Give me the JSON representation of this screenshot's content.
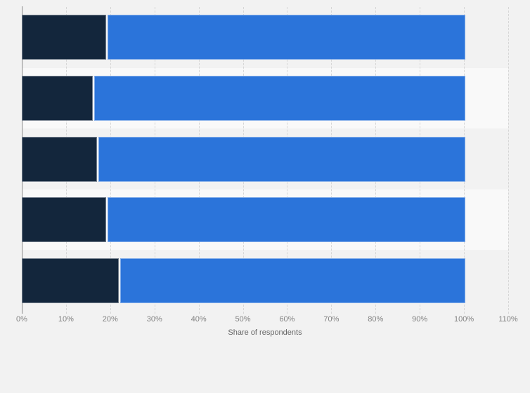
{
  "chart_data": {
    "type": "bar",
    "orientation": "horizontal",
    "stacked": true,
    "title": "",
    "xlabel": "Share of respondents",
    "ylabel": "",
    "categories": [
      "",
      "",
      "",
      "",
      ""
    ],
    "series": [
      {
        "name": "segment-dark-navy",
        "color": "#13263c",
        "values": [
          19,
          16,
          17,
          19,
          22
        ]
      },
      {
        "name": "segment-blue",
        "color": "#2b74da",
        "values": [
          81,
          84,
          83,
          81,
          78
        ]
      }
    ],
    "stack_total": 100,
    "x_axis": {
      "min": 0,
      "max": 110,
      "step": 10,
      "tick_labels": [
        "0%",
        "10%",
        "20%",
        "30%",
        "40%",
        "50%",
        "60%",
        "70%",
        "80%",
        "90%",
        "100%",
        "110%"
      ],
      "gridlines": "dashed"
    },
    "legend": "none",
    "layout": {
      "row_band_colors": {
        "odd": "#f2f2f2",
        "even": "#f9f9f9"
      },
      "background": "#f2f2f2",
      "gridline_color": "#d6d6d6",
      "axis_line_color": "#8a8a8a",
      "tick_label_color": "#828282",
      "axis_title_color": "#666666"
    }
  }
}
